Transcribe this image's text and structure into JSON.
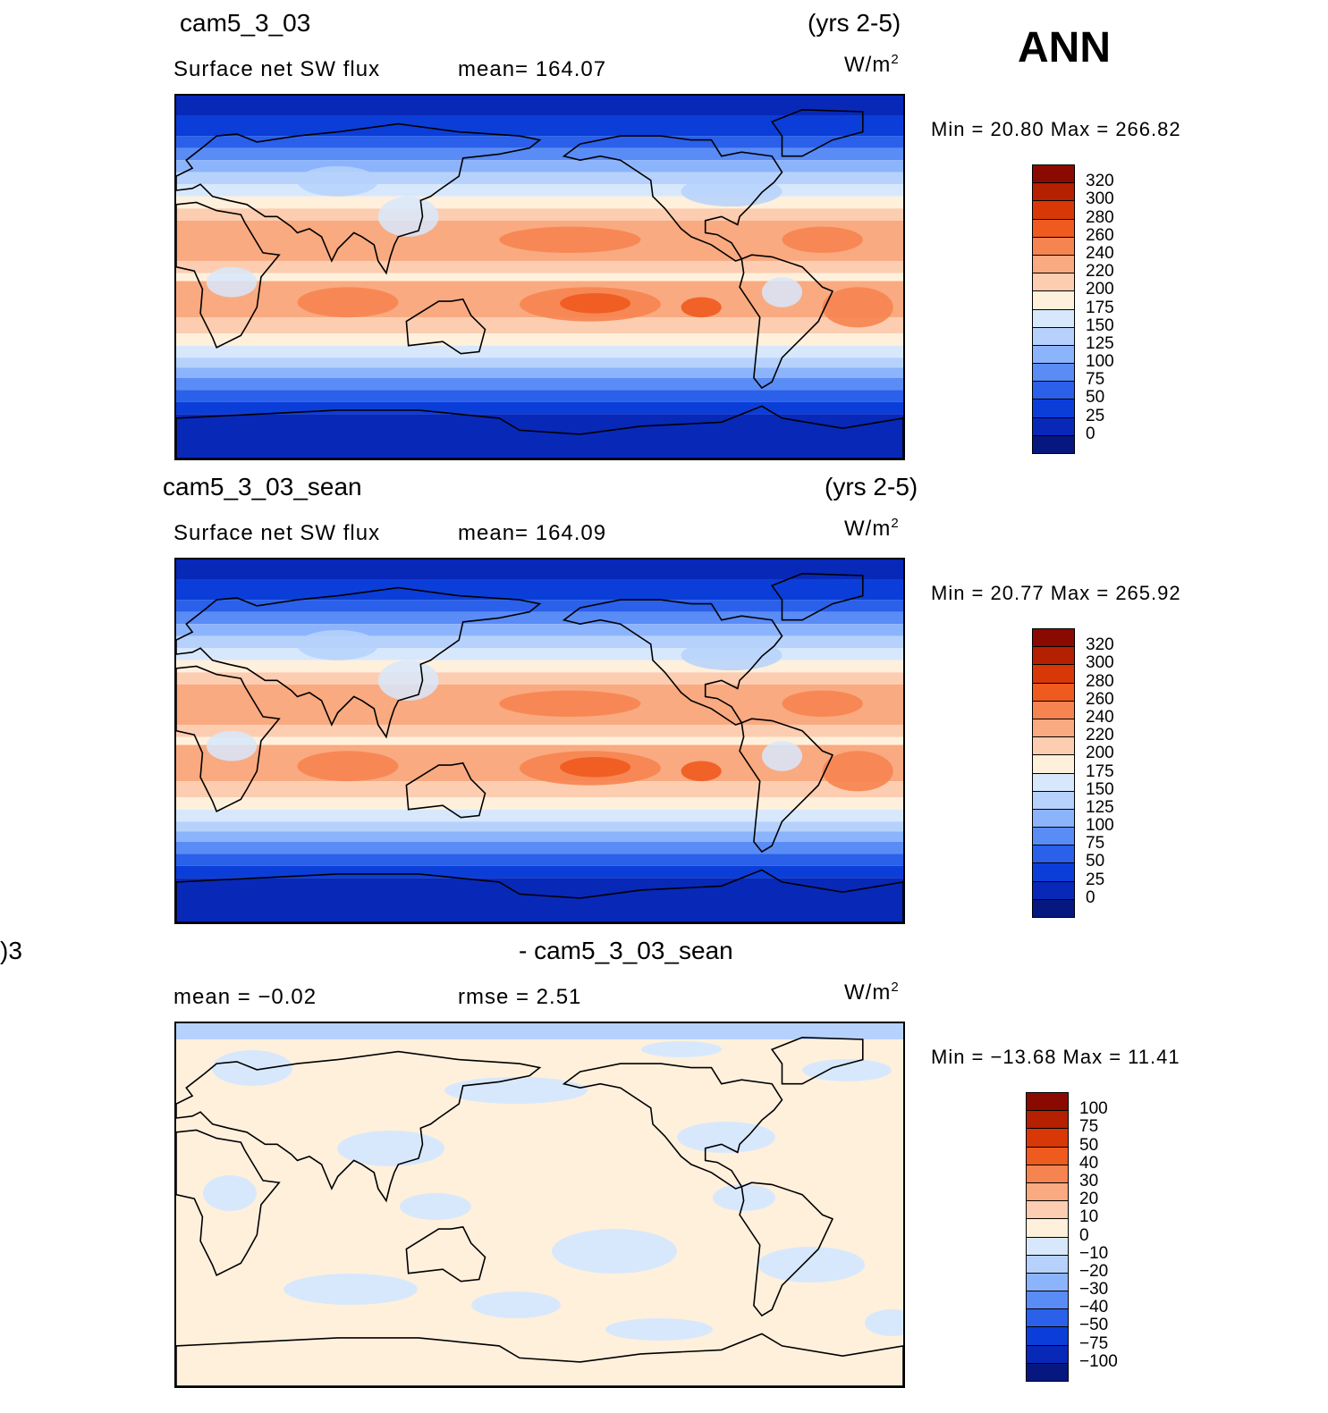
{
  "season": "ANN",
  "panels": [
    {
      "case_name": "cam5_3_03",
      "years": "(yrs 2-5)",
      "variable": "Surface net SW flux",
      "stat": "mean=  164.07",
      "units": "W/m",
      "units_exp": "2",
      "minmax": "Min =   20.80  Max  =  266.82"
    },
    {
      "case_name": "cam5_3_03_sean",
      "years": "(yrs 2-5)",
      "variable": "Surface net SW flux",
      "stat": "mean=  164.09",
      "units": "W/m",
      "units_exp": "2",
      "minmax": "Min =   20.77  Max  =  265.92"
    },
    {
      "case_left": ")3",
      "case_name": "- cam5_3_03_sean",
      "variable": "mean  =   −0.02",
      "stat": "rmse  =    2.51",
      "units": "W/m",
      "units_exp": "2",
      "minmax": "Min  = −13.68  Max  =    11.41"
    }
  ],
  "chart_data": [
    {
      "type": "heatmap",
      "title": "cam5_3_03 (yrs 2-5)",
      "subtitle": "Surface net SW flux",
      "units": "W/m2",
      "mean": 164.07,
      "min": 20.8,
      "max": 266.82,
      "levels": [
        "320",
        "300",
        "280",
        "260",
        "240",
        "220",
        "200",
        "175",
        "150",
        "125",
        "100",
        "75",
        "50",
        "25",
        "0"
      ],
      "colors": [
        "#8b0a00",
        "#b42000",
        "#d83806",
        "#ef5a1e",
        "#f68450",
        "#f9aa80",
        "#fccdb0",
        "#fff0dc",
        "#d8e8fc",
        "#b6d2fc",
        "#8cb4fc",
        "#5a8cf6",
        "#2a60ea",
        "#0b3ed8",
        "#0828b8",
        "#061880"
      ]
    },
    {
      "type": "heatmap",
      "title": "cam5_3_03_sean (yrs 2-5)",
      "subtitle": "Surface net SW flux",
      "units": "W/m2",
      "mean": 164.09,
      "min": 20.77,
      "max": 265.92,
      "levels": [
        "320",
        "300",
        "280",
        "260",
        "240",
        "220",
        "200",
        "175",
        "150",
        "125",
        "100",
        "75",
        "50",
        "25",
        "0"
      ],
      "colors": [
        "#8b0a00",
        "#b42000",
        "#d83806",
        "#ef5a1e",
        "#f68450",
        "#f9aa80",
        "#fccdb0",
        "#fff0dc",
        "#d8e8fc",
        "#b6d2fc",
        "#8cb4fc",
        "#5a8cf6",
        "#2a60ea",
        "#0b3ed8",
        "#0828b8",
        "#061880"
      ]
    },
    {
      "type": "heatmap",
      "title": "- cam5_3_03_sean",
      "units": "W/m2",
      "mean": -0.02,
      "rmse": 2.51,
      "min": -13.68,
      "max": 11.41,
      "levels": [
        "100",
        "75",
        "50",
        "40",
        "30",
        "20",
        "10",
        "0",
        "−10",
        "−20",
        "−30",
        "−40",
        "−50",
        "−75",
        "−100"
      ],
      "colors": [
        "#8b0a00",
        "#b42000",
        "#d83806",
        "#ef5a1e",
        "#f68450",
        "#f9aa80",
        "#fccdb0",
        "#fff0dc",
        "#d8e8fc",
        "#b6d2fc",
        "#8cb4fc",
        "#5a8cf6",
        "#2a60ea",
        "#0b3ed8",
        "#0828b8",
        "#061880"
      ]
    }
  ]
}
